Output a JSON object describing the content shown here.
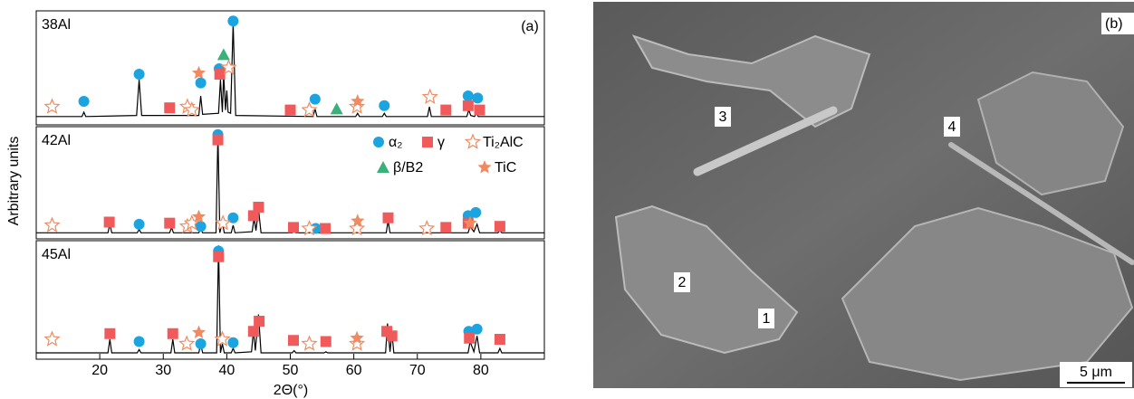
{
  "chart_data": {
    "type": "line",
    "panel_label": "(a)",
    "xlabel": "2Θ(°)",
    "ylabel": "Arbitrary units",
    "xlim": [
      10,
      90
    ],
    "xticks": [
      20,
      30,
      40,
      50,
      60,
      70,
      80
    ],
    "line_color": "#000000",
    "phases": [
      {
        "name": "α₂",
        "color": "#1aa4e0",
        "shape": "circle"
      },
      {
        "name": "γ",
        "color": "#f05a5a",
        "shape": "square"
      },
      {
        "name": "Ti₂AlC",
        "color": "#f08a60",
        "shape": "open-star"
      },
      {
        "name": "β/B2",
        "color": "#3ab07a",
        "shape": "triangle"
      },
      {
        "name": "TiC",
        "color": "#f08a60",
        "shape": "star"
      }
    ],
    "panels": [
      {
        "label": "38Al",
        "ylim": [
          0,
          100
        ],
        "x": [
          10,
          17.2,
          17.5,
          17.8,
          25.8,
          26.2,
          26.6,
          35.6,
          35.9,
          36.2,
          38.7,
          39.0,
          39.3,
          39.5,
          39.8,
          40.0,
          40.2,
          40.6,
          41.0,
          41.4,
          53.6,
          53.9,
          54.2,
          60.3,
          60.6,
          60.9,
          64.5,
          64.8,
          65.1,
          71.6,
          71.9,
          72.2,
          77.8,
          78.1,
          78.4,
          79.0,
          79.3,
          79.6,
          90
        ],
        "values": [
          6,
          6,
          10,
          6,
          7,
          40,
          7,
          7,
          25,
          8,
          9,
          40,
          10,
          45,
          12,
          30,
          10,
          9,
          92,
          7,
          6,
          13,
          6,
          6,
          9,
          6,
          6,
          9,
          6,
          6,
          15,
          6,
          6,
          12,
          7,
          6,
          9,
          6,
          6
        ],
        "markers": [
          {
            "x": [
              17.5,
              26.2,
              35.9,
              38.8,
              41.0,
              53.9,
              64.8,
              78.0,
              79.5
            ],
            "y": [
              20,
              45,
              37,
              50,
              94,
              22,
              16,
              25,
              23
            ]
          },
          {
            "x": [
              31.0,
              38.9,
              50.0,
              74.5,
              78.0,
              79.8
            ],
            "y": [
              14,
              45,
              12,
              12,
              16,
              12
            ]
          },
          {
            "x": [
              12.5,
              33.8,
              34.5,
              40.3,
              53.0,
              60.5,
              72.0
            ],
            "y": [
              15,
              15,
              12,
              51,
              12,
              15,
              24
            ]
          },
          {
            "x": [
              39.5,
              57.3
            ],
            "y": [
              63,
              13
            ]
          },
          {
            "x": [
              35.6,
              60.6
            ],
            "y": [
              46,
              20
            ]
          }
        ]
      },
      {
        "label": "42Al",
        "ylim": [
          0,
          100
        ],
        "x": [
          10,
          21.3,
          21.6,
          21.9,
          25.9,
          26.2,
          26.5,
          31.0,
          31.3,
          31.6,
          35.6,
          35.9,
          36.2,
          38.3,
          38.6,
          38.9,
          39.3,
          39.6,
          40.7,
          41.0,
          41.3,
          44.0,
          44.3,
          44.6,
          45.0,
          45.4,
          50.3,
          50.6,
          50.9,
          55.3,
          55.6,
          55.9,
          65.1,
          65.4,
          65.7,
          78.0,
          78.3,
          78.9,
          79.4,
          79.8,
          82.7,
          83.0,
          83.3,
          90
        ],
        "values": [
          4,
          4,
          12,
          4,
          4,
          7,
          4,
          4,
          9,
          4,
          4,
          8,
          4,
          4,
          97,
          4,
          14,
          4,
          4,
          11,
          4,
          5,
          18,
          6,
          26,
          4,
          4,
          6,
          4,
          4,
          6,
          4,
          4,
          15,
          4,
          4,
          10,
          5,
          12,
          4,
          4,
          6,
          4,
          4
        ],
        "markers": [
          {
            "x": [
              26.2,
              35.9,
              38.6,
              41.0,
              54.0,
              78.0,
              79.2
            ],
            "y": [
              12,
              10,
              96,
              18,
              8,
              20,
              23
            ]
          },
          {
            "x": [
              21.5,
              31.0,
              38.6,
              44.2,
              45.0,
              50.5,
              55.5,
              65.4,
              74.5,
              78.0,
              83.0
            ],
            "y": [
              14,
              13,
              91,
              20,
              28,
              9,
              8,
              18,
              9,
              13,
              10
            ]
          },
          {
            "x": [
              12.5,
              33.8,
              34.5,
              39.4,
              53.0,
              60.5,
              71.5
            ],
            "y": [
              11,
              10,
              13,
              13,
              8,
              8,
              8
            ]
          },
          {
            "x": [],
            "y": []
          },
          {
            "x": [
              35.6,
              60.6,
              78.3
            ],
            "y": [
              19,
              15,
              13
            ]
          }
        ]
      },
      {
        "label": "45Al",
        "ylim": [
          0,
          100
        ],
        "x": [
          10,
          21.3,
          21.6,
          21.9,
          25.9,
          26.2,
          26.5,
          31.2,
          31.5,
          31.8,
          35.6,
          35.9,
          36.2,
          38.4,
          38.7,
          39.0,
          39.3,
          39.6,
          40.7,
          41.0,
          41.3,
          43.9,
          44.2,
          44.5,
          45.0,
          45.4,
          50.3,
          50.6,
          50.9,
          55.3,
          55.6,
          55.9,
          65.0,
          65.3,
          65.7,
          66.0,
          66.3,
          78.0,
          78.3,
          78.9,
          79.4,
          79.8,
          82.7,
          83.0,
          83.3,
          90
        ],
        "values": [
          4,
          4,
          16,
          4,
          4,
          7,
          4,
          4,
          16,
          4,
          4,
          12,
          4,
          4,
          99,
          4,
          12,
          4,
          4,
          8,
          4,
          5,
          24,
          6,
          38,
          4,
          4,
          6,
          4,
          4,
          5,
          4,
          4,
          30,
          5,
          22,
          4,
          4,
          14,
          5,
          19,
          4,
          4,
          8,
          4,
          4
        ],
        "markers": [
          {
            "x": [
              26.2,
              35.9,
              38.7,
              41.0,
              78.1,
              79.4
            ],
            "y": [
              14,
              12,
              94,
              13,
              23,
              25
            ]
          },
          {
            "x": [
              21.6,
              31.5,
              38.7,
              44.2,
              45.1,
              50.5,
              55.6,
              65.2,
              66.0,
              78.2,
              83.0
            ],
            "y": [
              21,
              21,
              89,
              23,
              32,
              15,
              14,
              23,
              19,
              17,
              16
            ]
          },
          {
            "x": [
              12.5,
              33.7,
              39.3,
              53.0,
              60.5
            ],
            "y": [
              16,
              12,
              16,
              12,
              12
            ]
          },
          {
            "x": [],
            "y": []
          },
          {
            "x": [
              35.6,
              60.5
            ],
            "y": [
              22,
              17
            ]
          }
        ]
      }
    ]
  },
  "image": {
    "label": "(b)",
    "regions": [
      "1",
      "2",
      "3",
      "4"
    ],
    "scale_bar": "5 μm"
  }
}
